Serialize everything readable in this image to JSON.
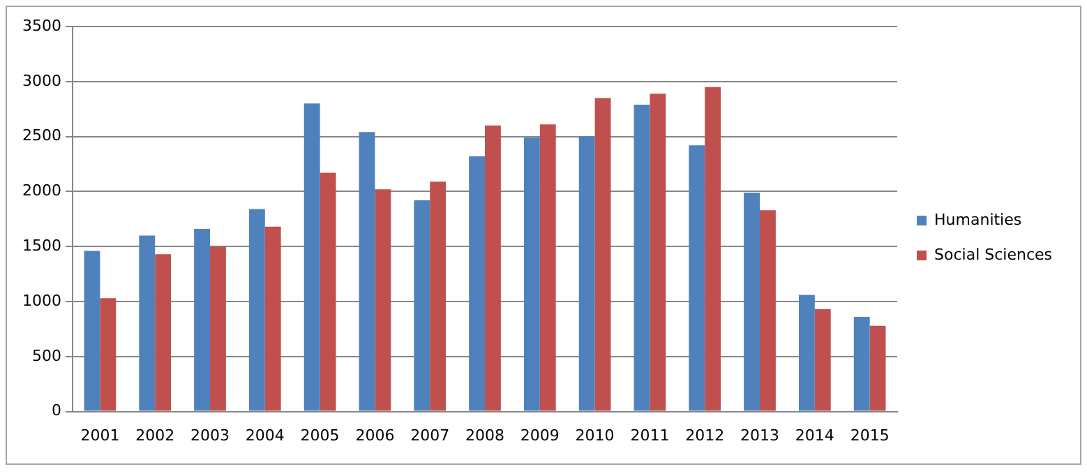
{
  "chart_data": {
    "type": "bar",
    "categories": [
      "2001",
      "2002",
      "2003",
      "2004",
      "2005",
      "2006",
      "2007",
      "2008",
      "2009",
      "2010",
      "2011",
      "2012",
      "2013",
      "2014",
      "2015"
    ],
    "series": [
      {
        "name": "Humanities",
        "color": "#4f81bd",
        "values": [
          1460,
          1600,
          1660,
          1840,
          2800,
          2540,
          1920,
          2320,
          2490,
          2500,
          2790,
          2420,
          1990,
          1060,
          860
        ]
      },
      {
        "name": "Social Sciences",
        "color": "#c0504d",
        "values": [
          1030,
          1430,
          1500,
          1680,
          2170,
          2020,
          2090,
          2600,
          2610,
          2850,
          2890,
          2950,
          1830,
          930,
          780
        ]
      }
    ],
    "ylim": [
      0,
      3500
    ],
    "yticks": [
      0,
      500,
      1000,
      1500,
      2000,
      2500,
      3000,
      3500
    ],
    "grid": "y",
    "legend": "right"
  }
}
